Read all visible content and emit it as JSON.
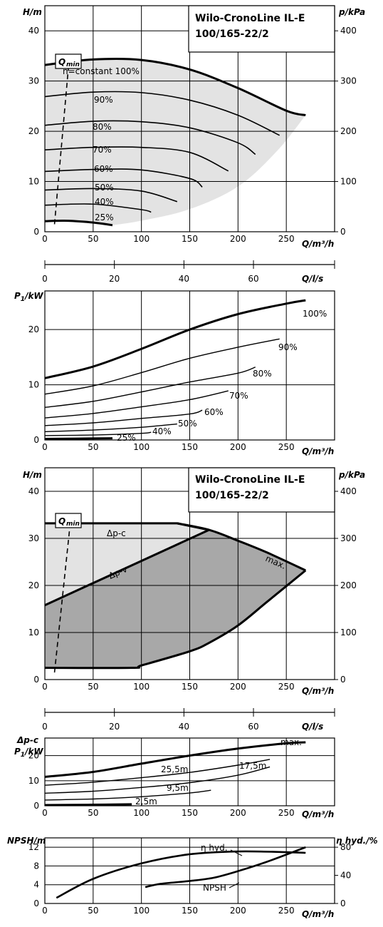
{
  "chart_data": [
    {
      "id": "hq_variable_speed",
      "type": "line",
      "title": [
        "Wilo-CronoLine IL-E",
        "100/165-22/2"
      ],
      "y_axis_label": "H/m",
      "y_right_label": "p/kPa",
      "x_axis_label": "Q/m³/h",
      "xlim": [
        0,
        300
      ],
      "ylim": [
        0,
        45
      ],
      "y_right_lim": [
        0,
        450
      ],
      "x_ticks": [
        0,
        50,
        100,
        150,
        200,
        250
      ],
      "y_ticks": [
        0,
        10,
        20,
        30,
        40
      ],
      "y_right_ticks": [
        0,
        100,
        200,
        300,
        400
      ],
      "qmin_label": "Q",
      "qmin_sub": "min",
      "qmin_line": [
        [
          10,
          1.5
        ],
        [
          27,
          38
        ]
      ],
      "series": [
        {
          "name": "n=constant 100%",
          "x": [
            0,
            50,
            100,
            150,
            200,
            250,
            270
          ],
          "y": [
            33.2,
            34.3,
            34.2,
            32.3,
            28.6,
            24.1,
            23.2
          ]
        },
        {
          "name": "90%",
          "x": [
            0,
            50,
            100,
            150,
            200,
            243
          ],
          "y": [
            26.9,
            27.8,
            27.7,
            26.2,
            23.2,
            19.2
          ]
        },
        {
          "name": "80%",
          "x": [
            0,
            50,
            100,
            150,
            200,
            218
          ],
          "y": [
            21.2,
            22.0,
            21.9,
            20.7,
            17.7,
            15.4
          ]
        },
        {
          "name": "70%",
          "x": [
            0,
            50,
            100,
            150,
            190
          ],
          "y": [
            16.3,
            16.8,
            16.8,
            15.8,
            12.1
          ]
        },
        {
          "name": "60%",
          "x": [
            0,
            50,
            100,
            150,
            163
          ],
          "y": [
            12.0,
            12.4,
            12.3,
            10.6,
            8.9
          ]
        },
        {
          "name": "50%",
          "x": [
            0,
            50,
            100,
            137
          ],
          "y": [
            8.3,
            8.6,
            8.1,
            6.0
          ]
        },
        {
          "name": "40%",
          "x": [
            0,
            50,
            100,
            110
          ],
          "y": [
            5.3,
            5.5,
            4.4,
            3.9
          ]
        },
        {
          "name": "25%",
          "x": [
            0,
            20,
            40,
            60,
            70
          ],
          "y": [
            2.1,
            2.2,
            2.0,
            1.6,
            1.3
          ]
        }
      ],
      "secondary_x_axis": {
        "label": "Q/l/s",
        "ticks": [
          0,
          20,
          40,
          60
        ],
        "lim": [
          0,
          83.33
        ]
      }
    },
    {
      "id": "power_variable_speed",
      "type": "line",
      "y_axis_label": "P1/kW",
      "x_axis_label": "Q/m³/h",
      "xlim": [
        0,
        300
      ],
      "ylim": [
        0,
        27
      ],
      "x_ticks": [
        0,
        50,
        100,
        150,
        200,
        250
      ],
      "y_ticks": [
        0,
        10,
        20
      ],
      "series": [
        {
          "name": "100%",
          "x": [
            0,
            50,
            100,
            150,
            200,
            250,
            270
          ],
          "y": [
            11.2,
            13.3,
            16.5,
            20.0,
            22.8,
            24.7,
            25.3
          ]
        },
        {
          "name": "90%",
          "x": [
            0,
            50,
            100,
            150,
            200,
            243
          ],
          "y": [
            8.3,
            9.8,
            12.2,
            14.8,
            16.8,
            18.3
          ]
        },
        {
          "name": "80%",
          "x": [
            0,
            50,
            100,
            150,
            200,
            218
          ],
          "y": [
            5.9,
            7.0,
            8.7,
            10.5,
            12.1,
            13.2
          ]
        },
        {
          "name": "70%",
          "x": [
            0,
            50,
            100,
            150,
            190
          ],
          "y": [
            4.0,
            4.8,
            6.0,
            7.3,
            8.9
          ]
        },
        {
          "name": "60%",
          "x": [
            0,
            50,
            100,
            150,
            163
          ],
          "y": [
            2.6,
            3.1,
            3.9,
            4.7,
            5.4
          ]
        },
        {
          "name": "50%",
          "x": [
            0,
            50,
            100,
            137
          ],
          "y": [
            1.5,
            1.8,
            2.3,
            2.9
          ]
        },
        {
          "name": "40%",
          "x": [
            0,
            50,
            100,
            110
          ],
          "y": [
            0.8,
            0.9,
            1.2,
            1.4
          ]
        },
        {
          "name": "25%",
          "x": [
            0,
            35,
            70
          ],
          "y": [
            0.2,
            0.25,
            0.3
          ]
        }
      ]
    },
    {
      "id": "hq_control_modes",
      "type": "area",
      "title": [
        "Wilo-CronoLine IL-E",
        "100/165-22/2"
      ],
      "y_axis_label": "H/m",
      "y_right_label": "p/kPa",
      "x_axis_label": "Q/m³/h",
      "xlim": [
        0,
        300
      ],
      "ylim": [
        0,
        45
      ],
      "y_right_lim": [
        0,
        450
      ],
      "x_ticks": [
        0,
        50,
        100,
        150,
        200,
        250
      ],
      "y_ticks": [
        0,
        10,
        20,
        30,
        40
      ],
      "y_right_ticks": [
        0,
        100,
        200,
        300,
        400
      ],
      "qmin_label": "Q",
      "qmin_sub": "min",
      "qmin_line": [
        [
          10,
          1.5
        ],
        [
          27,
          38
        ]
      ],
      "dp_c_label": "Δp-c",
      "dp_v_label": "Δp-v",
      "max_label": "max.",
      "dp_c_line": {
        "x": [
          0,
          137,
          170
        ],
        "y": [
          33.2,
          33.2,
          31.8
        ]
      },
      "dp_v_line": {
        "x": [
          0,
          170
        ],
        "y": [
          15.8,
          31.8
        ]
      },
      "max_curve": {
        "x": [
          137,
          170,
          200,
          230,
          270
        ],
        "y": [
          33.2,
          31.8,
          29.5,
          27.0,
          23.2
        ]
      },
      "lower_boundary": {
        "x": [
          0,
          90,
          100,
          150,
          170,
          200,
          230,
          270
        ],
        "y": [
          2.5,
          2.5,
          3.0,
          6.0,
          7.8,
          11.5,
          16.5,
          23.2
        ]
      },
      "secondary_x_axis": {
        "label": "Q/l/s",
        "ticks": [
          0,
          20,
          40,
          60
        ],
        "lim": [
          0,
          83.33
        ]
      }
    },
    {
      "id": "power_control_modes",
      "type": "line",
      "y_axis_label": "P1/kW",
      "y_axis_label_top": "Δp-c",
      "x_axis_label": "Q/m³/h",
      "xlim": [
        0,
        300
      ],
      "ylim": [
        0,
        27
      ],
      "x_ticks": [
        0,
        50,
        100,
        150,
        200,
        250
      ],
      "y_ticks": [
        0,
        10,
        20
      ],
      "series": [
        {
          "name": "max.",
          "x": [
            0,
            50,
            100,
            150,
            200,
            250,
            270
          ],
          "y": [
            11.5,
            13.5,
            16.8,
            20.0,
            22.8,
            24.9,
            25.3
          ]
        },
        {
          "name": "25,5m",
          "x": [
            0,
            50,
            100,
            150,
            200,
            233
          ],
          "y": [
            8.2,
            9.4,
            11.2,
            13.3,
            16.2,
            18.5
          ]
        },
        {
          "name": "17,5m",
          "x": [
            0,
            50,
            100,
            150,
            200,
            233
          ],
          "y": [
            5.0,
            5.8,
            7.3,
            9.2,
            12.2,
            15.5
          ]
        },
        {
          "name": "9,5m",
          "x": [
            0,
            50,
            100,
            150,
            172
          ],
          "y": [
            2.3,
            2.7,
            3.6,
            5.1,
            6.2
          ]
        },
        {
          "name": "2,5m",
          "x": [
            0,
            45,
            90
          ],
          "y": [
            0.3,
            0.4,
            0.6
          ]
        }
      ]
    },
    {
      "id": "npsh_efficiency",
      "type": "line",
      "y_axis_label": "NPSH/m",
      "y_right_label": "η hyd./%",
      "x_axis_label": "Q/m³/h",
      "xlim": [
        0,
        300
      ],
      "ylim": [
        0,
        14
      ],
      "y_right_lim": [
        0,
        93.3
      ],
      "x_ticks": [
        0,
        50,
        100,
        150,
        200,
        250
      ],
      "y_ticks": [
        0,
        4,
        8,
        12
      ],
      "y_right_ticks": [
        0,
        40,
        80
      ],
      "series": [
        {
          "name": "η hyd.",
          "axis": "right",
          "x": [
            12,
            50,
            100,
            150,
            200,
            250,
            270
          ],
          "y": [
            8,
            35,
            57,
            70,
            74,
            73,
            72
          ]
        },
        {
          "name": "NPSH",
          "axis": "left",
          "x": [
            104,
            120,
            150,
            175,
            200,
            230,
            270
          ],
          "y": [
            3.5,
            4.2,
            4.8,
            5.5,
            6.9,
            8.9,
            12.0
          ]
        }
      ]
    }
  ],
  "colors": {
    "region_light": "#e3e3e3",
    "region_dark": "#a8a8a8",
    "grid": "#000000"
  }
}
